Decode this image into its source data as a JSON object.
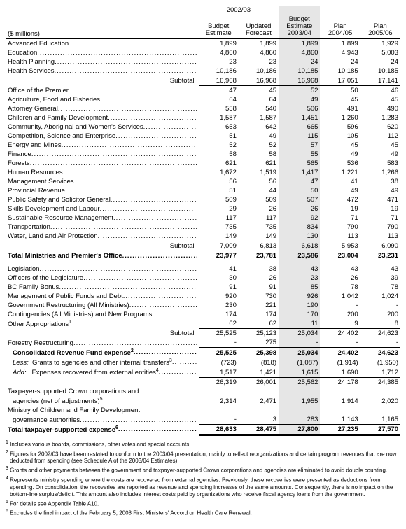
{
  "unit_label": "($ millions)",
  "headers": {
    "group_2002_03": "2002/03",
    "budget_estimate": "Budget\nEstimate",
    "updated_forecast": "Updated\nForecast",
    "budget_estimate_2003_04": "Budget\nEstimate\n2003/04",
    "plan_2004_05": "Plan\n2004/05",
    "plan_2005_06": "Plan\n2005/06"
  },
  "group1": [
    {
      "label": "Advanced Education",
      "v": [
        "1,899",
        "1,899",
        "1,899",
        "1,899",
        "1,929"
      ]
    },
    {
      "label": "Education",
      "v": [
        "4,860",
        "4,860",
        "4,860",
        "4,943",
        "5,003"
      ]
    },
    {
      "label": "Health Planning",
      "v": [
        "23",
        "23",
        "24",
        "24",
        "24"
      ]
    },
    {
      "label": "Health Services",
      "v": [
        "10,186",
        "10,186",
        "10,185",
        "10,185",
        "10,185"
      ]
    }
  ],
  "subtotal1": {
    "label": "Subtotal",
    "v": [
      "16,968",
      "16,968",
      "16,968",
      "17,051",
      "17,141"
    ]
  },
  "group2": [
    {
      "label": "Office of the Premier",
      "v": [
        "47",
        "45",
        "52",
        "50",
        "46"
      ]
    },
    {
      "label": "Agriculture, Food and Fisheries",
      "v": [
        "64",
        "64",
        "49",
        "45",
        "45"
      ]
    },
    {
      "label": "Attorney General",
      "v": [
        "558",
        "540",
        "506",
        "491",
        "490"
      ]
    },
    {
      "label": "Children and Family Development",
      "v": [
        "1,587",
        "1,587",
        "1,451",
        "1,260",
        "1,283"
      ]
    },
    {
      "label": "Community, Aboriginal and Women's Services",
      "v": [
        "653",
        "642",
        "665",
        "596",
        "620"
      ]
    },
    {
      "label": "Competition, Science and Enterprise",
      "v": [
        "51",
        "49",
        "115",
        "105",
        "112"
      ]
    },
    {
      "label": "Energy and Mines",
      "v": [
        "52",
        "52",
        "57",
        "45",
        "45"
      ]
    },
    {
      "label": "Finance",
      "v": [
        "58",
        "58",
        "55",
        "49",
        "49"
      ]
    },
    {
      "label": "Forests",
      "v": [
        "621",
        "621",
        "565",
        "536",
        "583"
      ]
    },
    {
      "label": "Human Resources",
      "v": [
        "1,672",
        "1,519",
        "1,417",
        "1,221",
        "1,266"
      ]
    },
    {
      "label": "Management Services",
      "v": [
        "56",
        "56",
        "47",
        "41",
        "38"
      ]
    },
    {
      "label": "Provincial Revenue",
      "v": [
        "51",
        "44",
        "50",
        "49",
        "49"
      ]
    },
    {
      "label": "Public Safety and Solicitor General",
      "v": [
        "509",
        "509",
        "507",
        "472",
        "471"
      ]
    },
    {
      "label": "Skills Development and Labour",
      "v": [
        "29",
        "26",
        "26",
        "19",
        "19"
      ]
    },
    {
      "label": "Sustainable Resource Management",
      "v": [
        "117",
        "117",
        "92",
        "71",
        "71"
      ]
    },
    {
      "label": "Transportation",
      "v": [
        "735",
        "735",
        "834",
        "790",
        "790"
      ]
    },
    {
      "label": "Water, Land and Air Protection",
      "v": [
        "149",
        "149",
        "130",
        "113",
        "113"
      ]
    }
  ],
  "subtotal2": {
    "label": "Subtotal",
    "v": [
      "7,009",
      "6,813",
      "6,618",
      "5,953",
      "6,090"
    ]
  },
  "total_ministries": {
    "label": "Total Ministries and Premier's Office",
    "v": [
      "23,977",
      "23,781",
      "23,586",
      "23,004",
      "23,231"
    ]
  },
  "group3": [
    {
      "label": "Legislation",
      "v": [
        "41",
        "38",
        "43",
        "43",
        "43"
      ]
    },
    {
      "label": "Officers of the Legislature",
      "v": [
        "30",
        "26",
        "23",
        "26",
        "39"
      ]
    },
    {
      "label": "BC Family Bonus",
      "v": [
        "91",
        "91",
        "85",
        "78",
        "78"
      ]
    },
    {
      "label": "Management of Public Funds and Debt",
      "v": [
        "920",
        "730",
        "926",
        "1,042",
        "1,024"
      ]
    },
    {
      "label": "Government Restructuring (All Ministries)",
      "v": [
        "230",
        "221",
        "190",
        "-",
        "-"
      ]
    },
    {
      "label": "Contingencies (All Ministries) and New Programs",
      "v": [
        "174",
        "174",
        "170",
        "200",
        "200"
      ]
    },
    {
      "label": "Other Appropriations",
      "sup": "1",
      "v": [
        "62",
        "62",
        "11",
        "9",
        "8"
      ]
    }
  ],
  "subtotal3": {
    "label": "Subtotal",
    "v": [
      "25,525",
      "25,123",
      "25,034",
      "24,402",
      "24,623"
    ]
  },
  "forestry": {
    "label": "Forestry Restructuring",
    "v": [
      "-",
      "275",
      "-",
      "-",
      "-"
    ]
  },
  "consolidated": {
    "label": "Consolidated Revenue Fund expense",
    "sup": "2",
    "v": [
      "25,525",
      "25,398",
      "25,034",
      "24,402",
      "24,623"
    ]
  },
  "less_grants": {
    "prefix": "Less:",
    "label": "Grants to agencies and other internal transfers",
    "sup": "3",
    "v": [
      "(723)",
      "(818)",
      "(1,087)",
      "(1,914)",
      "(1,950)"
    ]
  },
  "add_exp": {
    "prefix": "Add:",
    "label": "Expenses recovered from external  entities",
    "sup": "4",
    "v": [
      "1,517",
      "1,421",
      "1,615",
      "1,690",
      "1,712"
    ]
  },
  "sum_after": {
    "v": [
      "26,319",
      "26,001",
      "25,562",
      "24,178",
      "24,385"
    ]
  },
  "crown": {
    "label": "Taxpayer-supported Crown corporations and",
    "label2": "agencies (net of adjustments)",
    "sup": "5",
    "v": [
      "2,314",
      "2,471",
      "1,955",
      "1,914",
      "2,020"
    ]
  },
  "mcfd": {
    "label": "Ministry of Children and Family Development",
    "label2": "governance authorities",
    "v": [
      "-",
      "3",
      "283",
      "1,143",
      "1,165"
    ]
  },
  "total_final": {
    "label": "Total taxpayer-supported expense",
    "sup": "6",
    "v": [
      "28,633",
      "28,475",
      "27,800",
      "27,235",
      "27,570"
    ]
  },
  "footnotes": [
    "Includes various boards, commissions, other votes and special accounts.",
    "Figures for 2002/03 have been restated to conform to the 2003/04 presentation, mainly to reflect reorganizations and certain program revenues that are now deducted from spending (see Schedule A of the 2003/04 Estimates).",
    "Grants and other payments between the government and taxpayer-supported Crown corporations and agencies are eliminated to avoid double counting.",
    "Represents ministry spending where the costs are recovered from external agencies.  Previously, these recoveries were presented as deductions from spending.  On consolidation, the recoveries are reported as revenue and spending increases of the same amounts.  Consequently, there is no impact on the bottom-line surplus/deficit.  This amount also includes interest costs paid by organizations who receive fiscal agency loans from the government.",
    "For details see Appendix Table A10.",
    "Excludes the final impact of the February 5, 2003 First Ministers' Accord on Health Care Renewal."
  ]
}
